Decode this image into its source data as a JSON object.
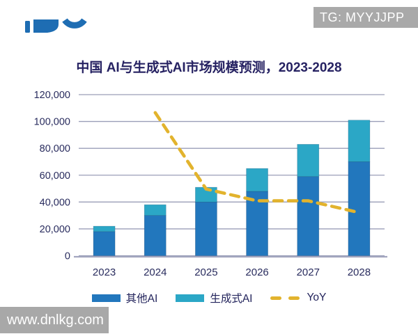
{
  "header": {
    "logo_icon": "cropped-blue-logo",
    "tg_watermark": "TG: MYYJJPP"
  },
  "footer_watermark": "www.dnlkg.com",
  "colors": {
    "other_ai": "#2277bd",
    "gen_ai": "#2ba7c6",
    "yoy": "#e2b32d",
    "title_text": "#262262",
    "axis_text": "#292c5e",
    "gridline": "#9a9eb8",
    "axis_line": "#a3a6bf",
    "watermark_bg": "#a9a9a9",
    "watermark_text": "#ffffff",
    "logo_blue": "#1e6db3"
  },
  "chart_data": {
    "type": "bar",
    "subtype": "stacked-bars-with-dashed-line-overlay",
    "title": "中国 AI与生成式AI市场规模预测，2023-2028",
    "categories": [
      "2023",
      "2024",
      "2025",
      "2026",
      "2027",
      "2028"
    ],
    "series": [
      {
        "name": "其他AI",
        "type": "bar",
        "stack": "total",
        "values": [
          18000,
          30000,
          40000,
          48000,
          59000,
          70000
        ]
      },
      {
        "name": "生成式AI",
        "type": "bar",
        "stack": "total",
        "values": [
          4000,
          8000,
          11000,
          17000,
          24000,
          31000
        ]
      },
      {
        "name": "YoY",
        "type": "line",
        "line_style": "dashed",
        "axis": "secondary_hidden",
        "values_percent": [
          null,
          73,
          34,
          28,
          28,
          22
        ]
      }
    ],
    "stack_totals": [
      22000,
      38000,
      51000,
      65000,
      83000,
      101000
    ],
    "xlabel": "",
    "ylabel": "",
    "ylim": [
      0,
      120000
    ],
    "ytick_step": 20000,
    "ytick_labels": [
      "0",
      "20,000",
      "40,000",
      "60,000",
      "80,000",
      "100,000",
      "120,000"
    ],
    "grid": true,
    "legend_position": "bottom",
    "yoy_hidden_axis_hint": {
      "percent_to_primary_units": 1460
    }
  }
}
